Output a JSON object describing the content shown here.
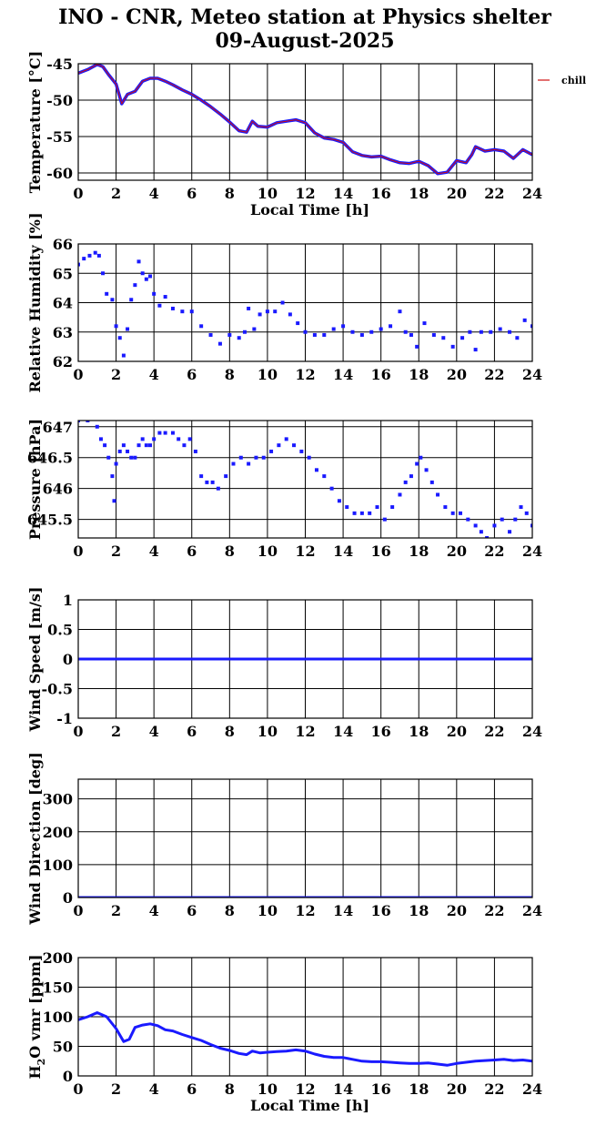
{
  "title_line1": "INO - CNR, Meteo station at Physics shelter",
  "title_line2": "09-August-2025",
  "chart_data": [
    {
      "type": "line",
      "ylabel": "Temperature [°C]",
      "xlabel": "Local Time [h]",
      "xlim": [
        0,
        24
      ],
      "ylim": [
        -61,
        -45
      ],
      "xticks": [
        0,
        2,
        4,
        6,
        8,
        10,
        12,
        14,
        16,
        18,
        20,
        22,
        24
      ],
      "yticks": [
        -60,
        -55,
        -50,
        -45
      ],
      "grid": true,
      "legend": "top-right",
      "series": [
        {
          "name": "chill",
          "color": "#d01010",
          "overlay_color": "#1a1aff",
          "x": [
            0,
            0.5,
            1.0,
            1.3,
            1.6,
            2.0,
            2.3,
            2.6,
            3.0,
            3.4,
            3.8,
            4.2,
            4.6,
            5.0,
            5.5,
            6.0,
            6.5,
            7.0,
            7.5,
            8.0,
            8.5,
            8.9,
            9.2,
            9.5,
            10.0,
            10.5,
            11.0,
            11.5,
            12.0,
            12.5,
            13.0,
            13.5,
            14.0,
            14.5,
            15.0,
            15.5,
            16.0,
            16.5,
            17.0,
            17.5,
            18.0,
            18.5,
            19.0,
            19.5,
            20.0,
            20.5,
            20.8,
            21.0,
            21.5,
            22.0,
            22.5,
            23.0,
            23.5,
            24.0
          ],
          "values": [
            -46.3,
            -45.8,
            -45.1,
            -45.4,
            -46.5,
            -47.8,
            -50.5,
            -49.2,
            -48.8,
            -47.4,
            -47.0,
            -47.0,
            -47.4,
            -47.9,
            -48.6,
            -49.2,
            -50.0,
            -50.9,
            -51.9,
            -53.0,
            -54.2,
            -54.4,
            -52.9,
            -53.6,
            -53.7,
            -53.1,
            -52.9,
            -52.7,
            -53.1,
            -54.5,
            -55.2,
            -55.4,
            -55.8,
            -57.1,
            -57.6,
            -57.8,
            -57.7,
            -58.2,
            -58.6,
            -58.7,
            -58.4,
            -59.0,
            -60.1,
            -59.9,
            -58.3,
            -58.6,
            -57.5,
            -56.4,
            -57.0,
            -56.8,
            -57.0,
            -58.0,
            -56.8,
            -57.5
          ]
        }
      ]
    },
    {
      "type": "scatter",
      "ylabel": "Relative Humidity [%]",
      "xlabel": "",
      "xlim": [
        0,
        24
      ],
      "ylim": [
        62,
        66
      ],
      "xticks": [
        0,
        2,
        4,
        6,
        8,
        10,
        12,
        14,
        16,
        18,
        20,
        22,
        24
      ],
      "yticks": [
        62,
        63,
        64,
        65,
        66
      ],
      "grid": true,
      "series": [
        {
          "color": "#1a1aff",
          "x": [
            0,
            0.3,
            0.6,
            0.9,
            1.1,
            1.3,
            1.5,
            1.8,
            2.0,
            2.2,
            2.4,
            2.6,
            2.8,
            3.0,
            3.2,
            3.4,
            3.6,
            3.8,
            4.0,
            4.3,
            4.6,
            5.0,
            5.5,
            6.0,
            6.5,
            7.0,
            7.5,
            8.0,
            8.5,
            8.8,
            9.0,
            9.3,
            9.6,
            10.0,
            10.4,
            10.8,
            11.2,
            11.6,
            12.0,
            12.5,
            13.0,
            13.5,
            14.0,
            14.5,
            15.0,
            15.5,
            16.0,
            16.5,
            17.0,
            17.3,
            17.6,
            17.9,
            18.3,
            18.8,
            19.3,
            19.8,
            20.3,
            20.7,
            21.0,
            21.3,
            21.8,
            22.3,
            22.8,
            23.2,
            23.6,
            24.0
          ],
          "values": [
            65.3,
            65.5,
            65.6,
            65.7,
            65.6,
            65.0,
            64.3,
            64.1,
            63.2,
            62.8,
            62.2,
            63.1,
            64.1,
            64.6,
            65.4,
            65.0,
            64.8,
            64.9,
            64.3,
            63.9,
            64.2,
            63.8,
            63.7,
            63.7,
            63.2,
            62.9,
            62.6,
            62.9,
            62.8,
            63.0,
            63.8,
            63.1,
            63.6,
            63.7,
            63.7,
            64.0,
            63.6,
            63.3,
            63.0,
            62.9,
            62.9,
            63.1,
            63.2,
            63.0,
            62.9,
            63.0,
            63.1,
            63.2,
            63.7,
            63.0,
            62.9,
            62.5,
            63.3,
            62.9,
            62.8,
            62.5,
            62.8,
            63.0,
            62.4,
            63.0,
            63.0,
            63.1,
            63.0,
            62.8,
            63.4,
            63.2
          ]
        }
      ]
    },
    {
      "type": "scatter",
      "ylabel": "Pressure [hPa]",
      "xlabel": "",
      "xlim": [
        0,
        24
      ],
      "ylim": [
        645.2,
        647.1
      ],
      "xticks": [
        0,
        2,
        4,
        6,
        8,
        10,
        12,
        14,
        16,
        18,
        20,
        22,
        24
      ],
      "yticks": [
        645.5,
        646,
        646.5,
        647
      ],
      "grid": true,
      "series": [
        {
          "color": "#1a1aff",
          "x": [
            0,
            0.5,
            1.0,
            1.2,
            1.4,
            1.6,
            1.8,
            1.9,
            2.0,
            2.2,
            2.4,
            2.6,
            2.8,
            3.0,
            3.2,
            3.4,
            3.6,
            3.8,
            4.0,
            4.3,
            4.6,
            5.0,
            5.3,
            5.6,
            5.9,
            6.2,
            6.5,
            6.8,
            7.1,
            7.4,
            7.8,
            8.2,
            8.6,
            9.0,
            9.4,
            9.8,
            10.2,
            10.6,
            11.0,
            11.4,
            11.8,
            12.2,
            12.6,
            13.0,
            13.4,
            13.8,
            14.2,
            14.6,
            15.0,
            15.4,
            15.8,
            16.2,
            16.6,
            17.0,
            17.3,
            17.6,
            17.9,
            18.1,
            18.4,
            18.7,
            19.0,
            19.4,
            19.8,
            20.2,
            20.6,
            21.0,
            21.3,
            21.6,
            22.0,
            22.4,
            22.8,
            23.1,
            23.4,
            23.7,
            24.0
          ],
          "values": [
            647.1,
            647.1,
            647.0,
            646.8,
            646.7,
            646.5,
            646.2,
            645.8,
            646.4,
            646.6,
            646.7,
            646.6,
            646.5,
            646.5,
            646.7,
            646.8,
            646.7,
            646.7,
            646.8,
            646.9,
            646.9,
            646.9,
            646.8,
            646.7,
            646.8,
            646.6,
            646.2,
            646.1,
            646.1,
            646.0,
            646.2,
            646.4,
            646.5,
            646.4,
            646.5,
            646.5,
            646.6,
            646.7,
            646.8,
            646.7,
            646.6,
            646.5,
            646.3,
            646.2,
            646.0,
            645.8,
            645.7,
            645.6,
            645.6,
            645.6,
            645.7,
            645.5,
            645.7,
            645.9,
            646.1,
            646.2,
            646.4,
            646.5,
            646.3,
            646.1,
            645.9,
            645.7,
            645.6,
            645.6,
            645.5,
            645.4,
            645.3,
            645.2,
            645.4,
            645.5,
            645.3,
            645.5,
            645.7,
            645.6,
            645.4
          ]
        }
      ]
    },
    {
      "type": "line",
      "ylabel": "Wind Speed [m/s]",
      "xlabel": "",
      "xlim": [
        0,
        24
      ],
      "ylim": [
        -1,
        1
      ],
      "xticks": [
        0,
        2,
        4,
        6,
        8,
        10,
        12,
        14,
        16,
        18,
        20,
        22,
        24
      ],
      "yticks": [
        -1,
        -0.5,
        0,
        0.5,
        1
      ],
      "grid": true,
      "series": [
        {
          "color": "#1a1aff",
          "x": [
            0,
            24
          ],
          "values": [
            0,
            0
          ]
        }
      ]
    },
    {
      "type": "line",
      "ylabel": "Wind Direction [deg]",
      "xlabel": "",
      "xlim": [
        0,
        24
      ],
      "ylim": [
        0,
        360
      ],
      "xticks": [
        0,
        2,
        4,
        6,
        8,
        10,
        12,
        14,
        16,
        18,
        20,
        22,
        24
      ],
      "yticks": [
        0,
        100,
        200,
        300
      ],
      "grid": true,
      "series": [
        {
          "color": "#1a1aff",
          "x": [
            0,
            24
          ],
          "values": [
            0,
            0
          ]
        }
      ]
    },
    {
      "type": "line",
      "ylabel": "H2O vmr [ppm]",
      "xlabel": "Local Time [h]",
      "xlim": [
        0,
        24
      ],
      "ylim": [
        0,
        200
      ],
      "xticks": [
        0,
        2,
        4,
        6,
        8,
        10,
        12,
        14,
        16,
        18,
        20,
        22,
        24
      ],
      "yticks": [
        0,
        50,
        100,
        150,
        200
      ],
      "grid": true,
      "series": [
        {
          "color": "#1a1aff",
          "x": [
            0,
            0.5,
            1.0,
            1.5,
            2.0,
            2.4,
            2.7,
            3.0,
            3.4,
            3.8,
            4.2,
            4.6,
            5.0,
            5.5,
            6.0,
            6.5,
            7.0,
            7.5,
            8.0,
            8.5,
            8.9,
            9.2,
            9.6,
            10.0,
            10.5,
            11.0,
            11.5,
            12.0,
            12.5,
            13.0,
            13.5,
            14.0,
            14.5,
            15.0,
            15.5,
            16.0,
            16.5,
            17.0,
            17.5,
            18.0,
            18.5,
            19.0,
            19.5,
            20.0,
            20.5,
            21.0,
            21.5,
            22.0,
            22.5,
            23.0,
            23.5,
            24.0
          ],
          "values": [
            95,
            100,
            107,
            100,
            80,
            58,
            62,
            82,
            86,
            88,
            85,
            78,
            76,
            70,
            65,
            60,
            53,
            47,
            43,
            38,
            36,
            42,
            39,
            40,
            41,
            42,
            44,
            42,
            37,
            33,
            31,
            31,
            28,
            25,
            24,
            24,
            23,
            22,
            21,
            21,
            22,
            20,
            18,
            21,
            23,
            25,
            26,
            27,
            28,
            26,
            27,
            25
          ]
        }
      ]
    }
  ]
}
